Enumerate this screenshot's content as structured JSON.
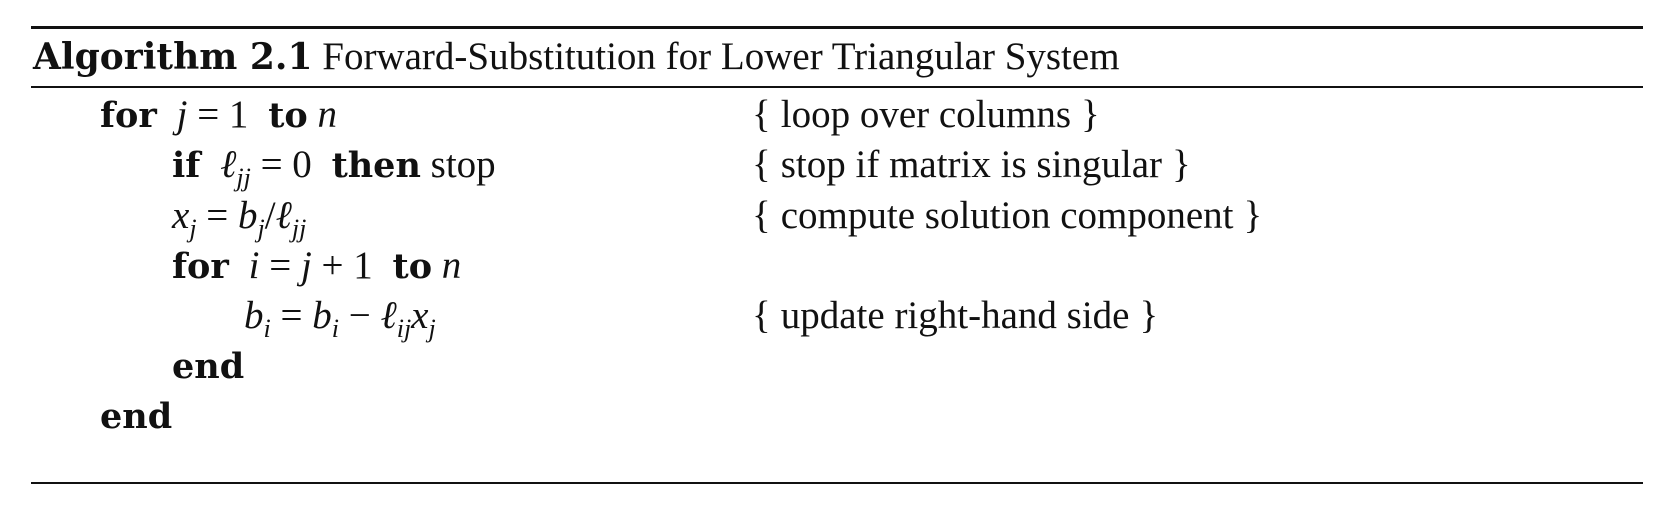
{
  "caption": {
    "label": "Algorithm 2.1",
    "title": "Forward-Substitution for Lower Triangular System"
  },
  "keywords": {
    "for": "for",
    "to": "to",
    "if": "if",
    "then": "then",
    "end": "end"
  },
  "lines": {
    "l1": {
      "j": "j",
      "eq": "= 1",
      "n": "n"
    },
    "l2": {
      "ell": "ℓ",
      "jj": "jj",
      "eq": "= 0",
      "stop": "stop"
    },
    "l3": {
      "x": "x",
      "j": "j",
      "eq": "=",
      "b": "b",
      "j2": "j",
      "slash": "/",
      "ell": "ℓ",
      "jj": "jj"
    },
    "l4": {
      "i": "i",
      "eq": "=",
      "j": "j",
      "plus": "+ 1",
      "n": "n"
    },
    "l5": {
      "b": "b",
      "i": "i",
      "eq": "=",
      "b2": "b",
      "i2": "i",
      "minus": "−",
      "ell": "ℓ",
      "ij": "ij",
      "x": "x",
      "j": "j"
    }
  },
  "comments": {
    "open": "{",
    "close": "}",
    "c1": "loop over columns",
    "c2": "stop if matrix is singular",
    "c3": "compute solution component",
    "c5": "update right-hand side"
  }
}
